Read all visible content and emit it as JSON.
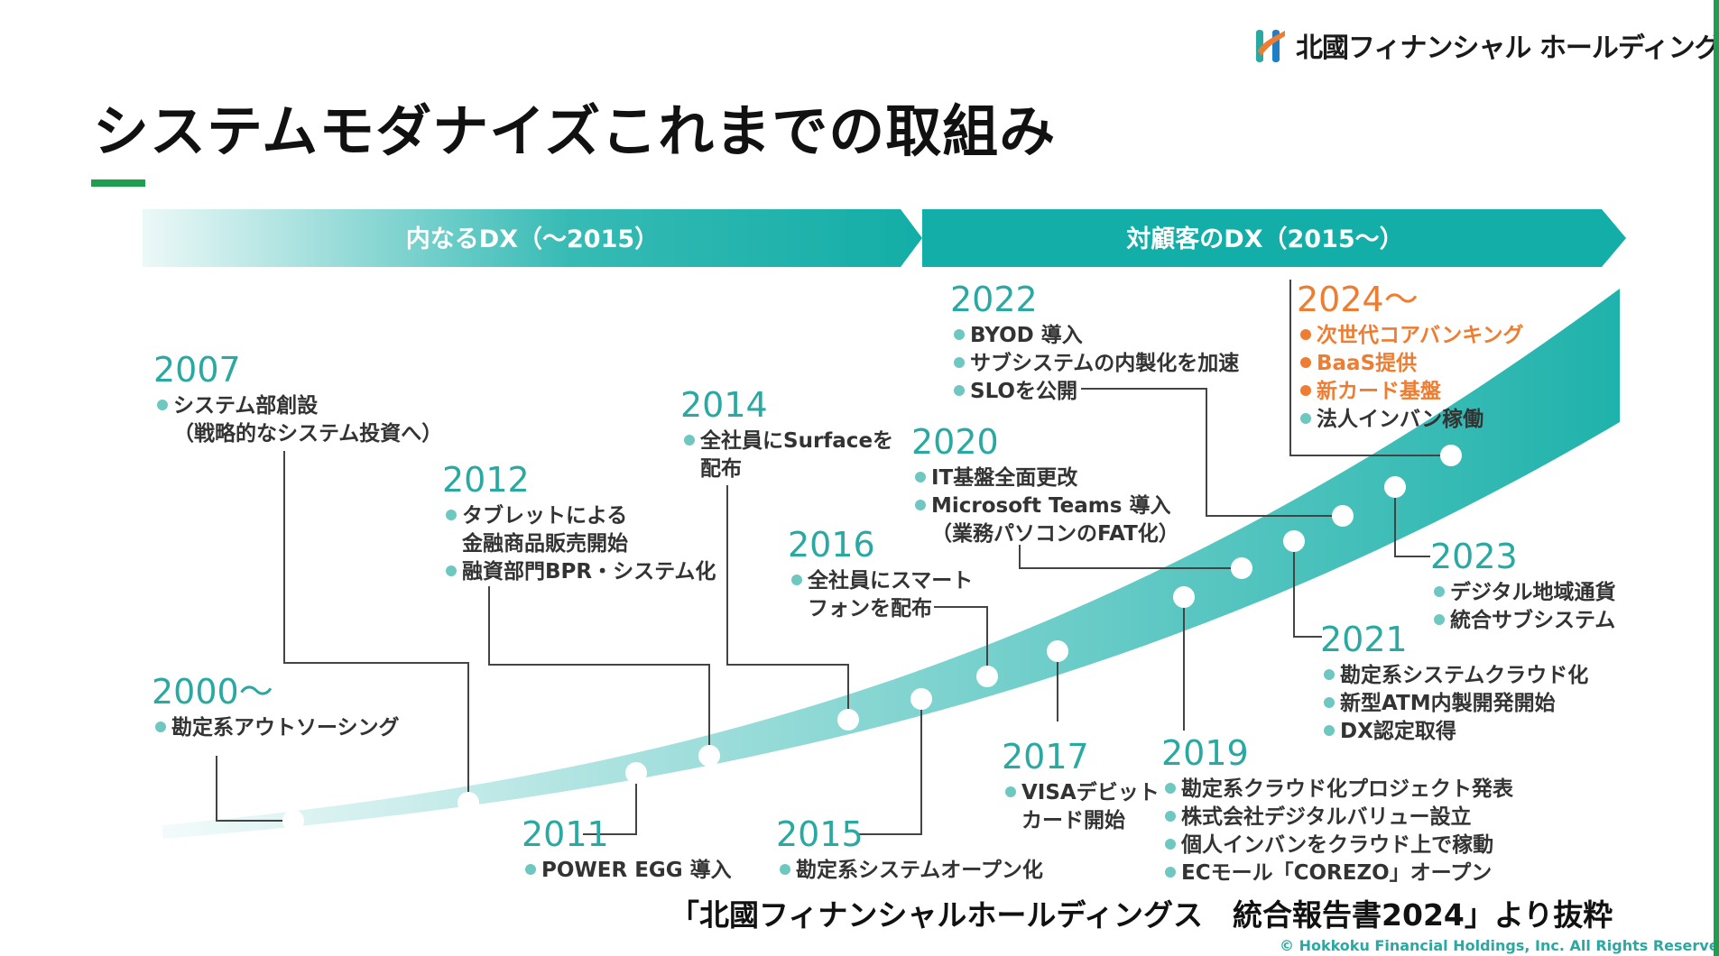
{
  "header": {
    "company_name": "北國フィナンシャル ホールディングス",
    "title": "システムモダナイズこれまでの取組み"
  },
  "bands": [
    {
      "label": "内なるDX（～2015）"
    },
    {
      "label": "対顧客のDX（2015～）"
    }
  ],
  "milestones": [
    {
      "year": "2000～",
      "items": [
        {
          "text": "勘定系アウトソーシング"
        }
      ]
    },
    {
      "year": "2007",
      "items": [
        {
          "text": "システム部創設"
        },
        {
          "text": "（戦略的なシステム投資へ）",
          "continuation": true
        }
      ]
    },
    {
      "year": "2011",
      "items": [
        {
          "text": "POWER EGG 導入"
        }
      ]
    },
    {
      "year": "2012",
      "items": [
        {
          "text": "タブレットによる"
        },
        {
          "text": "金融商品販売開始",
          "continuation": true
        },
        {
          "text": "融資部門BPR・システム化"
        }
      ]
    },
    {
      "year": "2014",
      "items": [
        {
          "text": "全社員にSurfaceを"
        },
        {
          "text": "配布",
          "continuation": true
        }
      ]
    },
    {
      "year": "2015",
      "items": [
        {
          "text": "勘定系システムオープン化"
        }
      ]
    },
    {
      "year": "2016",
      "items": [
        {
          "text": "全社員にスマート"
        },
        {
          "text": "フォンを配布",
          "continuation": true
        }
      ]
    },
    {
      "year": "2017",
      "items": [
        {
          "text": "VISAデビット"
        },
        {
          "text": "カード開始",
          "continuation": true
        }
      ]
    },
    {
      "year": "2019",
      "items": [
        {
          "text": "勘定系クラウド化プロジェクト発表"
        },
        {
          "text": "株式会社デジタルバリュー設立"
        },
        {
          "text": "個人インバンをクラウド上で稼動"
        },
        {
          "text": "ECモール「COREZO」オープン"
        }
      ]
    },
    {
      "year": "2020",
      "items": [
        {
          "text": "IT基盤全面更改"
        },
        {
          "text": "Microsoft Teams 導入"
        },
        {
          "text": "（業務パソコンのFAT化）",
          "continuation": true
        }
      ]
    },
    {
      "year": "2021",
      "items": [
        {
          "text": "勘定系システムクラウド化"
        },
        {
          "text": "新型ATM内製開発開始"
        },
        {
          "text": "DX認定取得"
        }
      ]
    },
    {
      "year": "2022",
      "items": [
        {
          "text": "BYOD 導入"
        },
        {
          "text": "サブシステムの内製化を加速"
        },
        {
          "text": "SLOを公開"
        }
      ]
    },
    {
      "year": "2023",
      "items": [
        {
          "text": "デジタル地域通貨"
        },
        {
          "text": "統合サブシステム"
        }
      ]
    },
    {
      "year": "2024～",
      "highlight": true,
      "items": [
        {
          "text": "次世代コアバンキング",
          "highlight": true
        },
        {
          "text": "BaaS提供",
          "highlight": true
        },
        {
          "text": "新カード基盤",
          "highlight": true
        },
        {
          "text": "法人インバン稼働"
        }
      ]
    }
  ],
  "footer": {
    "credit": "「北國フィナンシャルホールディングス　統合報告書2024」より抜粋",
    "copyright": "© Hokkoku Financial Holdings, Inc. All Rights Reserved."
  },
  "colors": {
    "teal": "#2aa9a2",
    "band_teal": "#13aea7",
    "orange": "#ee7d31",
    "accent_green": "#1e9e4f"
  }
}
